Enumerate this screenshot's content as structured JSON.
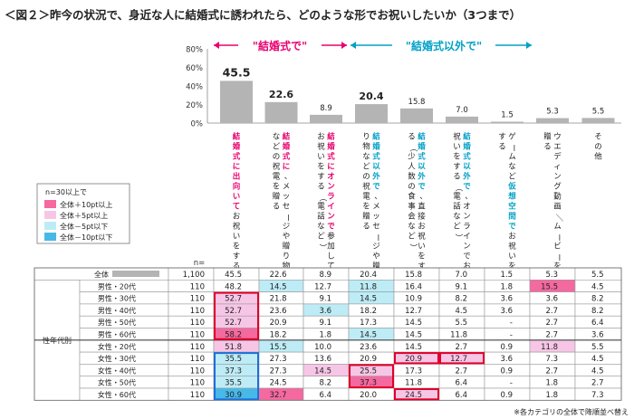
{
  "title": "＜図２＞昨今の状況で、身近な人に結婚式に誘われたら、どのような形でお祝いしたいか（3つまで）",
  "note": "※各カテゴリの全体で降順並べ替え",
  "colors": {
    "pink": "#e8006f",
    "blue": "#00a0c8",
    "cell_pink_strong": "#f4699f",
    "cell_pink_light": "#f7c6e6",
    "cell_blue_light": "#bdecf6",
    "cell_blue_strong": "#47b9e8",
    "bar_gray": "#b4b4b4"
  },
  "headers": {
    "wedding": "\"結婚式で\"",
    "non_wedding": "\"結婚式以外で\""
  },
  "n_label": "n=",
  "legend": {
    "title": "n=30以上で",
    "items": [
      {
        "label": "全体＋10pt以上",
        "color": "#f4699f"
      },
      {
        "label": "全体＋5pt以上",
        "color": "#f7c6e6"
      },
      {
        "label": "全体－5pt以下",
        "color": "#bdecf6"
      },
      {
        "label": "全体－10pt以下",
        "color": "#47b9e8"
      }
    ]
  },
  "group_label": "性年代別",
  "chart_data": {
    "type": "bar",
    "ylim": [
      0,
      80
    ],
    "yticks": [
      "0%",
      "20%",
      "40%",
      "60%",
      "80%"
    ],
    "categories": [
      {
        "segments": [
          {
            "text": "結婚式に出向いて",
            "color": "#e8006f"
          },
          {
            "text": "お祝いをする",
            "color": "#222"
          }
        ]
      },
      {
        "segments": [
          {
            "text": "結婚式に",
            "color": "#e8006f"
          },
          {
            "text": "、メッセージや贈り物などの祝電を贈る",
            "color": "#222"
          }
        ]
      },
      {
        "segments": [
          {
            "text": "結婚式にオンラインで",
            "color": "#e8006f"
          },
          {
            "text": "参加してお祝いをする（電話など）",
            "color": "#222"
          }
        ]
      },
      {
        "segments": [
          {
            "text": "結婚式以外で",
            "color": "#00a0c8"
          },
          {
            "text": "、メッセージや贈り物などの祝電を贈る",
            "color": "#222"
          }
        ]
      },
      {
        "segments": [
          {
            "text": "結婚式以外で",
            "color": "#00a0c8"
          },
          {
            "text": "、直接お祝いをする（少人数の食事会など）",
            "color": "#222"
          }
        ]
      },
      {
        "segments": [
          {
            "text": "結婚式以外で",
            "color": "#00a0c8"
          },
          {
            "text": "、オンラインでお祝いをする（電話など）",
            "color": "#222"
          }
        ]
      },
      {
        "segments": [
          {
            "text": "ゲームなど",
            "color": "#222"
          },
          {
            "text": "仮想空間で",
            "color": "#00a0c8"
          },
          {
            "text": "お祝いをする",
            "color": "#222"
          }
        ]
      },
      {
        "segments": [
          {
            "text": "ウエディング動画／ムービーを贈る",
            "color": "#222"
          }
        ]
      },
      {
        "segments": [
          {
            "text": "その他",
            "color": "#222"
          }
        ]
      }
    ],
    "values": [
      45.5,
      22.6,
      8.9,
      20.4,
      15.8,
      7.0,
      1.5,
      5.3,
      5.5
    ],
    "value_labels": [
      "45.5",
      "22.6",
      "8.9",
      "20.4",
      "15.8",
      "7.0",
      "1.5",
      "5.3",
      "5.5"
    ],
    "bold_labels": [
      0,
      1,
      3
    ]
  },
  "table": {
    "rows": [
      {
        "label": "全体",
        "n": "1,100",
        "values": [
          "45.5",
          "22.6",
          "8.9",
          "20.4",
          "15.8",
          "7.0",
          "1.5",
          "5.3",
          "5.5"
        ],
        "fill": [
          "",
          "",
          "",
          "",
          "",
          "",
          "",
          "",
          ""
        ],
        "box": [],
        "total": true
      },
      {
        "label": "男性・20代",
        "n": "110",
        "values": [
          "48.2",
          "14.5",
          "12.7",
          "11.8",
          "16.4",
          "9.1",
          "1.8",
          "15.5",
          "4.5"
        ],
        "fill": [
          "",
          "bl",
          "",
          "bl",
          "",
          "",
          "",
          "ps",
          ""
        ],
        "box": []
      },
      {
        "label": "男性・30代",
        "n": "110",
        "values": [
          "52.7",
          "21.8",
          "9.1",
          "14.5",
          "10.9",
          "8.2",
          "3.6",
          "3.6",
          "8.2"
        ],
        "fill": [
          "pl",
          "",
          "",
          "bl",
          "",
          "",
          "",
          "",
          ""
        ],
        "box": [
          0
        ]
      },
      {
        "label": "男性・40代",
        "n": "110",
        "values": [
          "52.7",
          "23.6",
          "3.6",
          "18.2",
          "12.7",
          "4.5",
          "3.6",
          "2.7",
          "8.2"
        ],
        "fill": [
          "pl",
          "",
          "bl",
          "",
          "",
          "",
          "",
          "",
          ""
        ],
        "box": [
          0
        ]
      },
      {
        "label": "男性・50代",
        "n": "110",
        "values": [
          "52.7",
          "20.9",
          "9.1",
          "17.3",
          "14.5",
          "5.5",
          "-",
          "2.7",
          "6.4"
        ],
        "fill": [
          "pl",
          "",
          "",
          "",
          "",
          "",
          "",
          "",
          ""
        ],
        "box": [
          0
        ]
      },
      {
        "label": "男性・60代",
        "n": "110",
        "values": [
          "58.2",
          "18.2",
          "1.8",
          "14.5",
          "14.5",
          "11.8",
          "-",
          "2.7",
          "3.6"
        ],
        "fill": [
          "ps",
          "",
          "",
          "bl",
          "",
          "",
          "",
          "",
          ""
        ],
        "box": [
          0
        ]
      },
      {
        "label": "女性・20代",
        "n": "110",
        "values": [
          "51.8",
          "15.5",
          "10.0",
          "23.6",
          "14.5",
          "2.7",
          "0.9",
          "11.8",
          "5.5"
        ],
        "fill": [
          "pl",
          "bl",
          "",
          "",
          "",
          "",
          "",
          "pl",
          ""
        ],
        "box": []
      },
      {
        "label": "女性・30代",
        "n": "110",
        "values": [
          "35.5",
          "27.3",
          "13.6",
          "20.9",
          "20.9",
          "12.7",
          "3.6",
          "7.3",
          "4.5"
        ],
        "fill": [
          "bl",
          "",
          "",
          "",
          "pl",
          "pl",
          "",
          "",
          ""
        ],
        "box": [
          0,
          4,
          5
        ]
      },
      {
        "label": "女性・40代",
        "n": "110",
        "values": [
          "37.3",
          "27.3",
          "14.5",
          "25.5",
          "17.3",
          "2.7",
          "0.9",
          "2.7",
          "4.5"
        ],
        "fill": [
          "bl",
          "",
          "pl",
          "pl",
          "",
          "",
          "",
          "",
          ""
        ],
        "box": [
          0,
          3
        ]
      },
      {
        "label": "女性・50代",
        "n": "110",
        "values": [
          "35.5",
          "24.5",
          "8.2",
          "37.3",
          "11.8",
          "6.4",
          "-",
          "1.8",
          "2.7"
        ],
        "fill": [
          "bl",
          "",
          "",
          "ps",
          "",
          "",
          "",
          "",
          ""
        ],
        "box": [
          0,
          3
        ]
      },
      {
        "label": "女性・60代",
        "n": "110",
        "values": [
          "30.9",
          "32.7",
          "6.4",
          "20.0",
          "24.5",
          "6.4",
          "0.9",
          "1.8",
          "7.3"
        ],
        "fill": [
          "bs",
          "ps",
          "",
          "",
          "pl",
          "",
          "",
          "",
          ""
        ],
        "box": [
          0,
          4
        ]
      }
    ]
  }
}
